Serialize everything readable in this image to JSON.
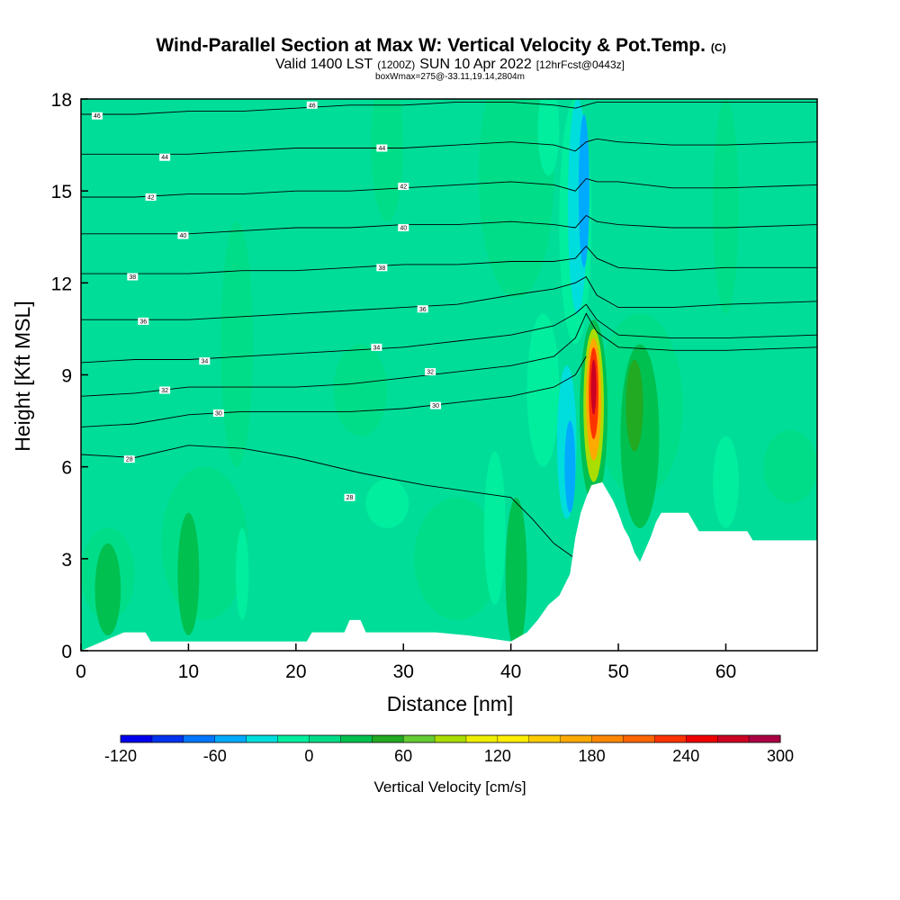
{
  "title": {
    "main": "Wind-Parallel Section at Max W: Vertical Velocity & Pot.Temp.",
    "mark": "(C)",
    "valid_a": "Valid 1400 LST",
    "valid_b": "(1200Z)",
    "valid_c": "SUN 10 Apr 2022",
    "valid_d": "[12hrFcst@0443z]",
    "box": "boxWmax=275@-33.11,19.14,2804m"
  },
  "chart_data": {
    "type": "heatmap",
    "xlabel": "Distance [nm]",
    "ylabel": "Height [Kft MSL]",
    "xlim": [
      0,
      68.5
    ],
    "ylim": [
      0,
      18
    ],
    "xticks": [
      0,
      10,
      20,
      30,
      40,
      50,
      60
    ],
    "yticks": [
      0,
      3,
      6,
      9,
      12,
      15,
      18
    ],
    "colorbar": {
      "title": "Vertical Velocity [cm/s]",
      "min": -120,
      "max": 300,
      "step": 20,
      "tick_labels": [
        "-120",
        "-60",
        "0",
        "60",
        "120",
        "180",
        "240",
        "300"
      ],
      "tick_values": [
        -120,
        -60,
        0,
        60,
        120,
        180,
        240,
        300
      ],
      "colors": [
        "#0000ee",
        "#0033ee",
        "#0077ff",
        "#00aaff",
        "#00dddd",
        "#00ee9e",
        "#00dd88",
        "#00c050",
        "#22aa22",
        "#66cc33",
        "#aadd00",
        "#eeee00",
        "#ffee00",
        "#ffcc00",
        "#ffaa00",
        "#ff8800",
        "#ff6600",
        "#ff3300",
        "#ee0000",
        "#cc0022",
        "#aa0044"
      ]
    },
    "terrain_profile": [
      [
        0,
        0.0
      ],
      [
        2,
        0.3
      ],
      [
        4,
        0.6
      ],
      [
        6,
        0.6
      ],
      [
        6.5,
        0.3
      ],
      [
        21,
        0.3
      ],
      [
        21.5,
        0.6
      ],
      [
        24.5,
        0.6
      ],
      [
        25,
        1.0
      ],
      [
        26,
        1.0
      ],
      [
        26.5,
        0.6
      ],
      [
        33,
        0.6
      ],
      [
        36,
        0.5
      ],
      [
        40,
        0.3
      ],
      [
        41.5,
        0.6
      ],
      [
        42.5,
        1.0
      ],
      [
        43.5,
        1.5
      ],
      [
        44.5,
        1.8
      ],
      [
        45.5,
        2.5
      ],
      [
        46,
        3.7
      ],
      [
        46.5,
        4.5
      ],
      [
        47,
        5.0
      ],
      [
        47.5,
        5.4
      ],
      [
        48.5,
        5.5
      ],
      [
        49,
        5.2
      ],
      [
        49.5,
        4.9
      ],
      [
        50,
        4.5
      ],
      [
        50.5,
        4.0
      ],
      [
        51,
        3.7
      ],
      [
        51.5,
        3.2
      ],
      [
        52,
        2.9
      ],
      [
        53,
        3.7
      ],
      [
        53.5,
        4.2
      ],
      [
        54,
        4.5
      ],
      [
        56.5,
        4.5
      ],
      [
        57,
        4.2
      ],
      [
        57.5,
        3.9
      ],
      [
        62,
        3.9
      ],
      [
        62.5,
        3.6
      ],
      [
        68.5,
        3.6
      ]
    ],
    "theta_contours": [
      {
        "label": "28",
        "pts": [
          [
            0,
            6.4
          ],
          [
            5,
            6.3
          ],
          [
            10,
            6.7
          ],
          [
            15,
            6.6
          ],
          [
            20,
            6.3
          ],
          [
            26,
            5.8
          ],
          [
            32,
            5.4
          ],
          [
            36,
            5.2
          ],
          [
            40,
            5.0
          ],
          [
            42,
            4.3
          ],
          [
            44,
            3.5
          ],
          [
            46,
            3.0
          ],
          [
            47,
            3.3
          ]
        ],
        "label_at": [
          4.5,
          6.25
        ],
        "label2": "28",
        "label2_at": [
          25,
          5.0
        ]
      },
      {
        "label": "30",
        "pts": [
          [
            0,
            7.3
          ],
          [
            5,
            7.4
          ],
          [
            10,
            7.7
          ],
          [
            15,
            7.8
          ],
          [
            20,
            7.8
          ],
          [
            25,
            7.8
          ],
          [
            30,
            7.9
          ],
          [
            35,
            8.1
          ],
          [
            40,
            8.3
          ],
          [
            44,
            8.6
          ],
          [
            46,
            9.0
          ],
          [
            47,
            9.6
          ]
        ],
        "label_at": [
          12.8,
          7.75
        ],
        "label2": "30",
        "label2_at": [
          33,
          8.0
        ]
      },
      {
        "label": "32",
        "pts": [
          [
            0,
            8.3
          ],
          [
            5,
            8.4
          ],
          [
            10,
            8.6
          ],
          [
            15,
            8.6
          ],
          [
            20,
            8.6
          ],
          [
            25,
            8.7
          ],
          [
            30,
            8.9
          ],
          [
            35,
            9.1
          ],
          [
            40,
            9.3
          ],
          [
            44,
            9.6
          ],
          [
            46,
            10.2
          ],
          [
            47,
            11.0
          ],
          [
            48,
            10.4
          ],
          [
            50,
            9.9
          ],
          [
            55,
            9.8
          ],
          [
            60,
            9.8
          ],
          [
            68.5,
            9.9
          ]
        ],
        "label_at": [
          7.8,
          8.5
        ],
        "label2": "32",
        "label2_at": [
          32.5,
          9.1
        ]
      },
      {
        "label": "34",
        "pts": [
          [
            0,
            9.4
          ],
          [
            5,
            9.5
          ],
          [
            10,
            9.5
          ],
          [
            15,
            9.6
          ],
          [
            20,
            9.7
          ],
          [
            25,
            9.8
          ],
          [
            30,
            9.9
          ],
          [
            35,
            10.1
          ],
          [
            40,
            10.3
          ],
          [
            44,
            10.6
          ],
          [
            46,
            11.0
          ],
          [
            47,
            11.3
          ],
          [
            48,
            10.8
          ],
          [
            50,
            10.3
          ],
          [
            55,
            10.2
          ],
          [
            60,
            10.2
          ],
          [
            68.5,
            10.3
          ]
        ],
        "label_at": [
          11.5,
          9.45
        ],
        "label2": "34",
        "label2_at": [
          27.5,
          9.9
        ]
      },
      {
        "label": "36",
        "pts": [
          [
            0,
            10.8
          ],
          [
            5,
            10.8
          ],
          [
            10,
            10.8
          ],
          [
            15,
            10.9
          ],
          [
            20,
            11.0
          ],
          [
            25,
            11.1
          ],
          [
            30,
            11.2
          ],
          [
            35,
            11.3
          ],
          [
            40,
            11.6
          ],
          [
            44,
            11.8
          ],
          [
            46,
            12.0
          ],
          [
            47,
            12.2
          ],
          [
            48,
            11.6
          ],
          [
            50,
            11.2
          ],
          [
            55,
            11.2
          ],
          [
            60,
            11.3
          ],
          [
            68.5,
            11.4
          ]
        ],
        "label_at": [
          5.8,
          10.75
        ],
        "label2": "36",
        "label2_at": [
          31.8,
          11.15
        ]
      },
      {
        "label": "38",
        "pts": [
          [
            0,
            12.3
          ],
          [
            5,
            12.3
          ],
          [
            10,
            12.3
          ],
          [
            15,
            12.4
          ],
          [
            20,
            12.4
          ],
          [
            25,
            12.5
          ],
          [
            30,
            12.6
          ],
          [
            35,
            12.6
          ],
          [
            40,
            12.7
          ],
          [
            44,
            12.7
          ],
          [
            46,
            12.8
          ],
          [
            47,
            13.2
          ],
          [
            48,
            12.8
          ],
          [
            50,
            12.5
          ],
          [
            55,
            12.4
          ],
          [
            60,
            12.5
          ],
          [
            68.5,
            12.5
          ]
        ],
        "label_at": [
          4.8,
          12.2
        ],
        "label2": "38",
        "label2_at": [
          28.0,
          12.5
        ]
      },
      {
        "label": "40",
        "pts": [
          [
            0,
            13.6
          ],
          [
            5,
            13.6
          ],
          [
            10,
            13.6
          ],
          [
            15,
            13.7
          ],
          [
            20,
            13.8
          ],
          [
            25,
            13.8
          ],
          [
            30,
            13.9
          ],
          [
            35,
            13.9
          ],
          [
            40,
            14.0
          ],
          [
            44,
            13.9
          ],
          [
            46,
            13.8
          ],
          [
            47,
            14.2
          ],
          [
            48,
            14.0
          ],
          [
            50,
            13.9
          ],
          [
            55,
            13.8
          ],
          [
            60,
            13.8
          ],
          [
            68.5,
            13.9
          ]
        ],
        "label_at": [
          9.5,
          13.55
        ],
        "label2": "40",
        "label2_at": [
          30.0,
          13.8
        ]
      },
      {
        "label": "42",
        "pts": [
          [
            0,
            14.8
          ],
          [
            5,
            14.8
          ],
          [
            10,
            14.9
          ],
          [
            15,
            14.9
          ],
          [
            20,
            15.0
          ],
          [
            25,
            15.0
          ],
          [
            30,
            15.1
          ],
          [
            35,
            15.2
          ],
          [
            40,
            15.3
          ],
          [
            44,
            15.2
          ],
          [
            46,
            15.0
          ],
          [
            47,
            15.4
          ],
          [
            48,
            15.3
          ],
          [
            50,
            15.3
          ],
          [
            55,
            15.1
          ],
          [
            60,
            15.1
          ],
          [
            68.5,
            15.2
          ]
        ],
        "label_at": [
          6.5,
          14.8
        ],
        "label2": "42",
        "label2_at": [
          30.0,
          15.15
        ]
      },
      {
        "label": "44",
        "pts": [
          [
            0,
            16.2
          ],
          [
            5,
            16.2
          ],
          [
            10,
            16.2
          ],
          [
            15,
            16.3
          ],
          [
            20,
            16.4
          ],
          [
            25,
            16.4
          ],
          [
            30,
            16.4
          ],
          [
            35,
            16.5
          ],
          [
            40,
            16.6
          ],
          [
            44,
            16.5
          ],
          [
            46,
            16.3
          ],
          [
            47,
            16.6
          ],
          [
            48,
            16.7
          ],
          [
            50,
            16.6
          ],
          [
            55,
            16.5
          ],
          [
            60,
            16.5
          ],
          [
            68.5,
            16.6
          ]
        ],
        "label_at": [
          7.8,
          16.1
        ],
        "label2": "44",
        "label2_at": [
          28.0,
          16.4
        ]
      },
      {
        "label": "46",
        "pts": [
          [
            0,
            17.5
          ],
          [
            5,
            17.5
          ],
          [
            10,
            17.6
          ],
          [
            15,
            17.6
          ],
          [
            20,
            17.7
          ],
          [
            25,
            17.8
          ],
          [
            30,
            17.8
          ],
          [
            35,
            17.9
          ],
          [
            40,
            17.9
          ],
          [
            44,
            17.8
          ],
          [
            46,
            17.7
          ],
          [
            48,
            17.9
          ],
          [
            55,
            17.9
          ],
          [
            68.5,
            17.9
          ]
        ],
        "label_at": [
          1.5,
          17.45
        ],
        "label2": "46",
        "label2_at": [
          21.5,
          17.8
        ]
      }
    ],
    "w_regions": [
      {
        "value": 10,
        "cx": 40.5,
        "cy": 15.5,
        "rx": 3.5,
        "ry": 4.0
      },
      {
        "value": 10,
        "cx": 28.5,
        "cy": 16.5,
        "rx": 1.5,
        "ry": 2.5
      },
      {
        "value": 10,
        "cx": 14.5,
        "cy": 10.0,
        "rx": 1.5,
        "ry": 4.0
      },
      {
        "value": 10,
        "cx": 2.5,
        "cy": 2.5,
        "rx": 2.5,
        "ry": 1.5
      },
      {
        "value": 20,
        "cx": 2.5,
        "cy": 2.0,
        "rx": 1.2,
        "ry": 1.5
      },
      {
        "value": 10,
        "cx": 11.5,
        "cy": 3.5,
        "rx": 4.0,
        "ry": 2.5
      },
      {
        "value": 20,
        "cx": 10.0,
        "cy": 2.5,
        "rx": 1.0,
        "ry": 2.0
      },
      {
        "value": 10,
        "cx": 26.0,
        "cy": 8.5,
        "rx": 2.5,
        "ry": 1.5
      },
      {
        "value": 10,
        "cx": 35.0,
        "cy": 3.0,
        "rx": 4.0,
        "ry": 2.0
      },
      {
        "value": 20,
        "cx": 40.5,
        "cy": 2.5,
        "rx": 1.0,
        "ry": 2.5
      },
      {
        "value": 10,
        "cx": 52.0,
        "cy": 8.0,
        "rx": 4.0,
        "ry": 3.0
      },
      {
        "value": 30,
        "cx": 52.0,
        "cy": 7.0,
        "rx": 1.8,
        "ry": 3.0
      },
      {
        "value": 40,
        "cx": 51.5,
        "cy": 8.0,
        "rx": 0.8,
        "ry": 1.5
      },
      {
        "value": 10,
        "cx": 60.0,
        "cy": 14.5,
        "rx": 1.2,
        "ry": 3.5
      },
      {
        "value": 10,
        "cx": 66.0,
        "cy": 6.0,
        "rx": 2.5,
        "ry": 1.2
      },
      {
        "value": -20,
        "cx": 28.5,
        "cy": 4.8,
        "rx": 2.0,
        "ry": 0.8
      },
      {
        "value": -20,
        "cx": 15.0,
        "cy": 2.5,
        "rx": 0.6,
        "ry": 1.5
      },
      {
        "value": -20,
        "cx": 38.5,
        "cy": 4.0,
        "rx": 1.0,
        "ry": 2.5
      },
      {
        "value": -20,
        "cx": 43.5,
        "cy": 17.0,
        "rx": 1.0,
        "ry": 1.5
      },
      {
        "value": -20,
        "cx": 60.0,
        "cy": 5.5,
        "rx": 1.2,
        "ry": 1.5
      },
      {
        "value": -20,
        "cx": 43.0,
        "cy": 8.5,
        "rx": 1.5,
        "ry": 2.5
      },
      {
        "value": -20,
        "cx": 46.0,
        "cy": 14.0,
        "rx": 1.5,
        "ry": 4.0
      },
      {
        "value": -40,
        "cx": 46.2,
        "cy": 14.5,
        "rx": 0.9,
        "ry": 3.5
      },
      {
        "value": -60,
        "cx": 46.8,
        "cy": 15.0,
        "rx": 0.5,
        "ry": 2.5
      },
      {
        "value": -40,
        "cx": 45.2,
        "cy": 6.8,
        "rx": 0.9,
        "ry": 2.5
      },
      {
        "value": -60,
        "cx": 45.5,
        "cy": 6.0,
        "rx": 0.5,
        "ry": 1.5
      },
      {
        "value": 20,
        "cx": 47.7,
        "cy": 7.8,
        "rx": 1.3,
        "ry": 3.0
      },
      {
        "value": 80,
        "cx": 47.7,
        "cy": 8.0,
        "rx": 0.95,
        "ry": 2.5
      },
      {
        "value": 160,
        "cx": 47.7,
        "cy": 8.2,
        "rx": 0.7,
        "ry": 2.0
      },
      {
        "value": 220,
        "cx": 47.7,
        "cy": 8.4,
        "rx": 0.45,
        "ry": 1.5
      },
      {
        "value": 260,
        "cx": 47.7,
        "cy": 8.6,
        "rx": 0.25,
        "ry": 0.9
      }
    ]
  }
}
